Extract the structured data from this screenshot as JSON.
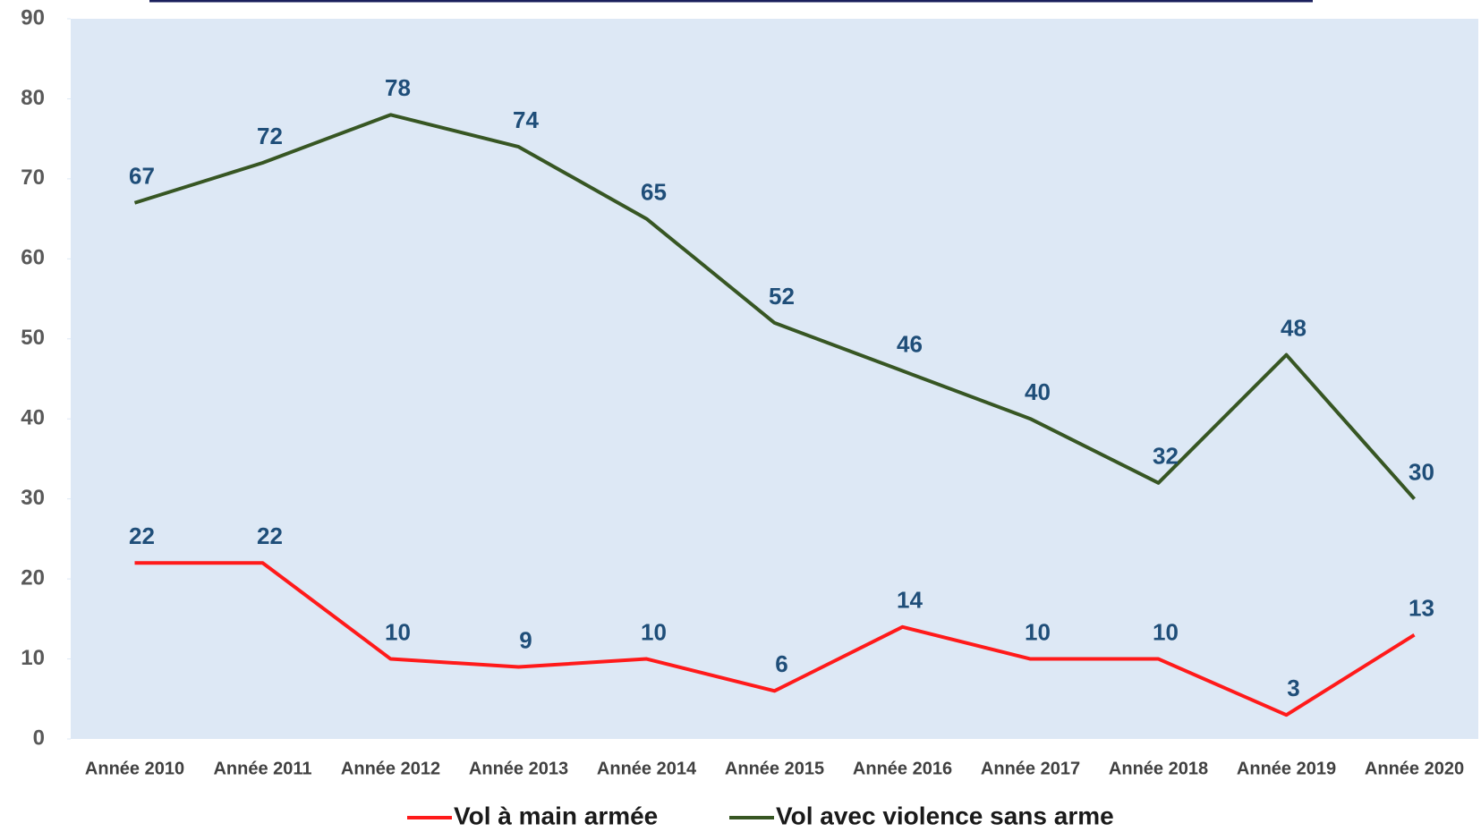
{
  "chart_data": {
    "type": "line",
    "categories": [
      "Année 2010",
      "Année 2011",
      "Année 2012",
      "Année 2013",
      "Année 2014",
      "Année 2015",
      "Année 2016",
      "Année 2017",
      "Année 2018",
      "Année 2019",
      "Année 2020"
    ],
    "series": [
      {
        "name": "Vol à main armée",
        "color": "#ff1a1a",
        "values": [
          22,
          22,
          10,
          9,
          10,
          6,
          14,
          10,
          10,
          3,
          13
        ]
      },
      {
        "name": "Vol avec violence sans arme",
        "color": "#375623",
        "values": [
          67,
          72,
          78,
          74,
          65,
          52,
          46,
          40,
          32,
          48,
          30
        ]
      }
    ],
    "ylim": [
      0,
      90
    ],
    "yticks": [
      0,
      10,
      20,
      30,
      40,
      50,
      60,
      70,
      80,
      90
    ],
    "legend": "bottom",
    "plot_background": "#dde8f5"
  }
}
